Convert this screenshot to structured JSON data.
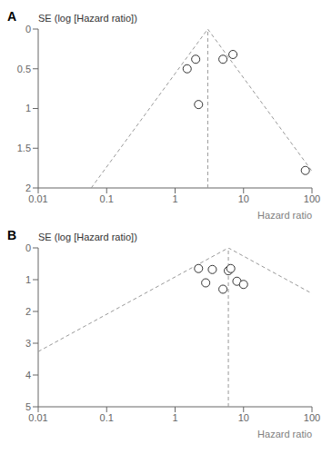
{
  "chart_data": [
    {
      "type": "scatter",
      "title": "A",
      "x_label": "Hazard ratio",
      "y_label": "SE (log [Hazard ratio])",
      "log": "x",
      "xlim": [
        0.01,
        100
      ],
      "xticks": [
        0.01,
        0.1,
        1,
        10,
        100
      ],
      "ylim": [
        2,
        0
      ],
      "yticks": [
        0,
        0.5,
        1,
        1.5,
        2
      ],
      "series": [
        {
          "type": "line",
          "x": [
            0.0595,
            3.0,
            100
          ],
          "values": [
            2,
            0,
            1.7891
          ],
          "color": "#999999",
          "line_style": "dashed"
        },
        {
          "type": "line",
          "x": [
            3.0,
            3.0
          ],
          "values": [
            2,
            0
          ],
          "color": "#999999",
          "line_style": "dashed"
        },
        {
          "type": "scatter",
          "x": [
            1.5,
            2.0,
            2.2,
            5.0,
            7.0,
            80.0
          ],
          "values": [
            0.5,
            0.38,
            0.95,
            0.38,
            0.32,
            1.78
          ],
          "color": "#333333",
          "marker": "circle"
        }
      ]
    },
    {
      "type": "scatter",
      "title": "B",
      "x_label": "Hazard ratio",
      "y_label": "SE (log [Hazard ratio])",
      "log": "x",
      "xlim": [
        0.01,
        100
      ],
      "xticks": [
        0.01,
        0.1,
        1,
        10,
        100
      ],
      "ylim": [
        5,
        0
      ],
      "yticks": [
        0,
        1,
        2,
        3,
        4,
        5
      ],
      "series": [
        {
          "type": "line",
          "x": [
            0.01,
            6.0,
            100
          ],
          "values": [
            3.2637,
            0,
            1.4354
          ],
          "color": "#999999",
          "line_style": "dashed"
        },
        {
          "type": "line",
          "x": [
            6.0,
            6.0
          ],
          "values": [
            5,
            0
          ],
          "color": "#999999",
          "line_style": "dashed"
        },
        {
          "type": "scatter",
          "x": [
            2.2,
            2.8,
            3.5,
            5.0,
            6.0,
            6.5,
            8.0,
            10.0
          ],
          "values": [
            0.65,
            1.1,
            0.68,
            1.3,
            0.72,
            0.65,
            1.05,
            1.15
          ],
          "color": "#333333",
          "marker": "circle"
        }
      ]
    }
  ]
}
